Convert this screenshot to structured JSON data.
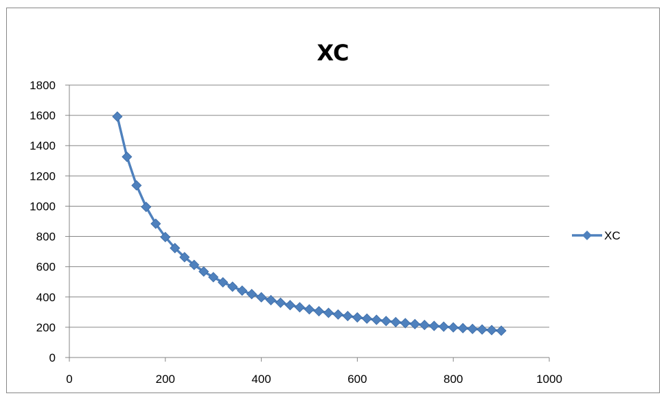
{
  "chart_data": {
    "type": "line",
    "title": "XC",
    "xlabel": "",
    "ylabel": "",
    "xlim": [
      0,
      1000
    ],
    "ylim": [
      0,
      1800
    ],
    "xticks": [
      0,
      200,
      400,
      600,
      800,
      1000
    ],
    "yticks": [
      0,
      200,
      400,
      600,
      800,
      1000,
      1200,
      1400,
      1600,
      1800
    ],
    "grid": "horizontal",
    "legend_position": "right",
    "series": [
      {
        "name": "XC",
        "color": "#4f81bd",
        "marker": "diamond",
        "x": [
          100,
          120,
          140,
          160,
          180,
          200,
          220,
          240,
          260,
          280,
          300,
          320,
          340,
          360,
          380,
          400,
          420,
          440,
          460,
          480,
          500,
          520,
          540,
          560,
          580,
          600,
          620,
          640,
          660,
          680,
          700,
          720,
          740,
          760,
          780,
          800,
          820,
          840,
          860,
          880,
          900
        ],
        "y": [
          1592,
          1326,
          1137,
          995,
          884,
          796,
          723,
          663,
          612,
          568,
          531,
          497,
          468,
          442,
          419,
          398,
          379,
          362,
          346,
          332,
          318,
          306,
          295,
          284,
          274,
          265,
          257,
          249,
          241,
          234,
          227,
          221,
          215,
          209,
          204,
          199,
          194,
          189,
          185,
          181,
          177
        ]
      }
    ]
  }
}
